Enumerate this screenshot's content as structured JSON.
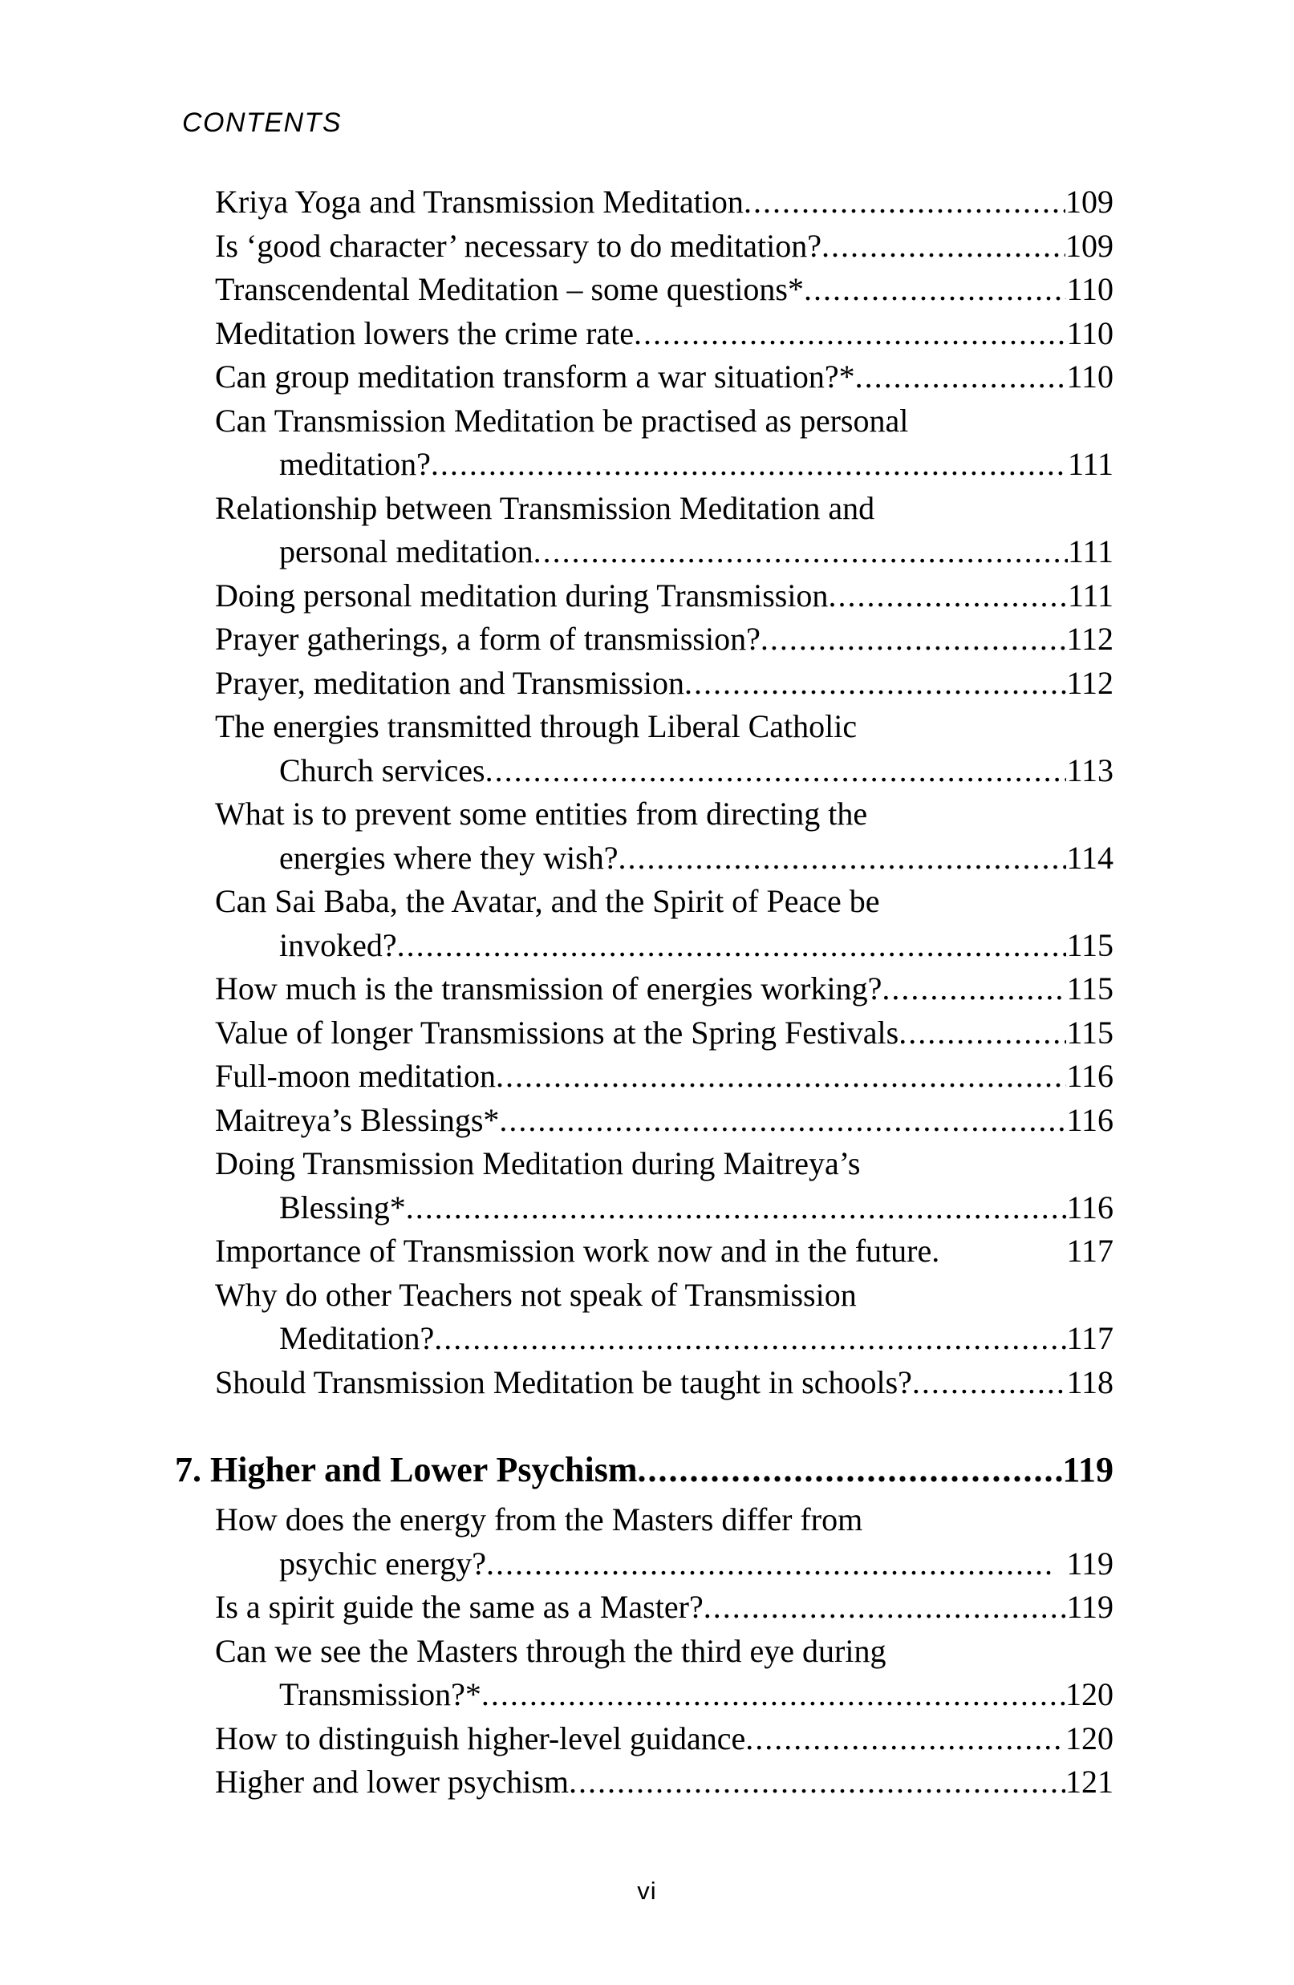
{
  "page": {
    "header": "CONTENTS",
    "folio": "vi",
    "background_color": "#ffffff",
    "text_color": "#000000"
  },
  "toc": {
    "rows": [
      {
        "text": "Kriya Yoga and Transmission Meditation",
        "page": "109"
      },
      {
        "text": "Is ‘good character’ necessary to do meditation?",
        "page": "109"
      },
      {
        "text": "Transcendental Meditation – some questions*",
        "page": "110"
      },
      {
        "text": "Meditation lowers the crime rate",
        "page": "110"
      },
      {
        "text": "Can group meditation transform a war situation?*",
        "page": "110"
      },
      {
        "text": "Can Transmission Meditation be practised as personal"
      },
      {
        "text": "meditation?",
        "page": "111",
        "indent": true
      },
      {
        "text": "Relationship between Transmission Meditation and"
      },
      {
        "text": "personal meditation",
        "page": "111",
        "indent": true
      },
      {
        "text": "Doing personal meditation during Transmission",
        "page": "111"
      },
      {
        "text": "Prayer gatherings, a form of transmission?",
        "page": "112"
      },
      {
        "text": "Prayer, meditation and Transmission",
        "page": "112"
      },
      {
        "text": "The energies transmitted through Liberal Catholic"
      },
      {
        "text": "Church services",
        "page": "113",
        "indent": true
      },
      {
        "text": "What is to prevent some entities from directing the"
      },
      {
        "text": "energies where they wish?",
        "page": "114",
        "indent": true
      },
      {
        "text": "Can Sai Baba, the Avatar, and the Spirit of Peace be"
      },
      {
        "text": "invoked?",
        "page": "115",
        "indent": true
      },
      {
        "text": "How much is the transmission of energies working?",
        "page": "115"
      },
      {
        "text": "Value of longer Transmissions at the Spring Festivals",
        "page": "115"
      },
      {
        "text": "Full-moon meditation",
        "page": "116"
      },
      {
        "text": "Maitreya’s Blessings*",
        "page": "116"
      },
      {
        "text": "Doing Transmission Meditation during Maitreya’s"
      },
      {
        "text": "Blessing*",
        "page": "116",
        "indent": true
      },
      {
        "text": "Importance of Transmission work now and in the future.",
        "page": "117",
        "leader": false
      },
      {
        "text": "Why do other Teachers not speak of Transmission"
      },
      {
        "text": "Meditation?",
        "page": "117",
        "indent": true
      },
      {
        "text": "Should Transmission Meditation be taught in schools?",
        "page": "118"
      },
      {
        "type": "section",
        "number": "7.",
        "text": "Higher and Lower Psychism",
        "page": "119"
      },
      {
        "text": "How does the energy from the Masters differ from"
      },
      {
        "text": "psychic energy?",
        "page": "119",
        "indent": true,
        "num_gap": true
      },
      {
        "text": "Is a spirit guide the same as a Master?",
        "page": "119"
      },
      {
        "text": "Can we see the Masters through the third eye during"
      },
      {
        "text": "Transmission?*",
        "page": "120",
        "indent": true
      },
      {
        "text": "How to distinguish higher-level guidance",
        "page": "120"
      },
      {
        "text": "Higher and lower psychism",
        "page": "121"
      }
    ]
  }
}
